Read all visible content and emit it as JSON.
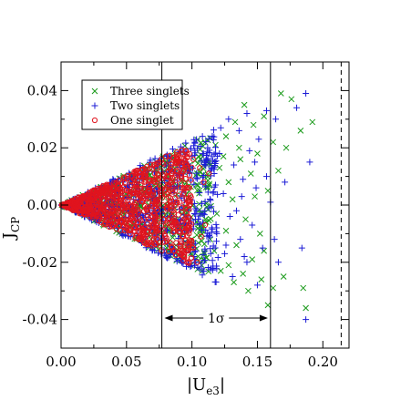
{
  "chart_data": {
    "type": "scatter",
    "xlabel": {
      "main": "|U",
      "sub": "e3",
      "tail": "|"
    },
    "ylabel": {
      "main": "J",
      "sub": "CP"
    },
    "xlim": [
      0.0,
      0.22
    ],
    "ylim": [
      -0.05,
      0.05
    ],
    "x_ticks": [
      {
        "value": 0.0,
        "label": "0.00"
      },
      {
        "value": 0.05,
        "label": "0.05"
      },
      {
        "value": 0.1,
        "label": "0.10"
      },
      {
        "value": 0.15,
        "label": "0.15"
      },
      {
        "value": 0.2,
        "label": "0.20"
      }
    ],
    "y_ticks": [
      {
        "value": -0.04,
        "label": "-0.04"
      },
      {
        "value": -0.02,
        "label": "-0.02"
      },
      {
        "value": 0.0,
        "label": "0.00"
      },
      {
        "value": 0.02,
        "label": "0.02"
      },
      {
        "value": 0.04,
        "label": "0.04"
      }
    ],
    "grid": false,
    "legend_position": "top-left",
    "vertical_lines": [
      {
        "x": 0.077,
        "style": "solid"
      },
      {
        "x": 0.16,
        "style": "solid"
      },
      {
        "x": 0.214,
        "style": "dashed"
      }
    ],
    "annotation": {
      "text": "1σ",
      "arrow_from": 0.079,
      "arrow_to": 0.158,
      "y": -0.0395
    },
    "series": [
      {
        "name": "Three singlets",
        "marker": "x",
        "color": "#1a9a1a",
        "envelope": {
          "x_max": 0.115,
          "slope": 0.22
        },
        "points": [
          [
            0.168,
            0.039
          ],
          [
            0.176,
            0.037
          ],
          [
            0.192,
            0.029
          ],
          [
            0.183,
            0.026
          ],
          [
            0.172,
            0.02
          ],
          [
            0.155,
            0.031
          ],
          [
            0.14,
            0.035
          ],
          [
            0.147,
            0.028
          ],
          [
            0.162,
            0.022
          ],
          [
            0.15,
            0.018
          ],
          [
            0.133,
            0.029
          ],
          [
            0.126,
            0.024
          ],
          [
            0.118,
            0.021
          ],
          [
            0.137,
            0.016
          ],
          [
            0.121,
            0.013
          ],
          [
            0.145,
            0.011
          ],
          [
            0.128,
            0.008
          ],
          [
            0.112,
            0.006
          ],
          [
            0.158,
            0.005
          ],
          [
            0.131,
            0.002
          ],
          [
            0.119,
            -0.003
          ],
          [
            0.141,
            -0.005
          ],
          [
            0.126,
            -0.009
          ],
          [
            0.152,
            -0.01
          ],
          [
            0.134,
            -0.014
          ],
          [
            0.117,
            -0.016
          ],
          [
            0.146,
            -0.019
          ],
          [
            0.128,
            -0.021
          ],
          [
            0.139,
            -0.024
          ],
          [
            0.153,
            -0.026
          ],
          [
            0.162,
            -0.029
          ],
          [
            0.158,
            -0.035
          ],
          [
            0.187,
            -0.036
          ],
          [
            0.185,
            -0.029
          ],
          [
            0.143,
            -0.03
          ],
          [
            0.132,
            -0.027
          ],
          [
            0.17,
            -0.025
          ],
          [
            0.122,
            -0.023
          ],
          [
            0.109,
            -0.019
          ],
          [
            0.105,
            0.017
          ],
          [
            0.11,
            0.022
          ],
          [
            0.114,
            -0.012
          ],
          [
            0.098,
            0.012
          ],
          [
            0.101,
            -0.015
          ],
          [
            0.136,
            0.02
          ],
          [
            0.148,
            0.003
          ],
          [
            0.124,
            0.017
          ],
          [
            0.155,
            -0.016
          ],
          [
            0.166,
            0.012
          ],
          [
            0.107,
            -0.008
          ]
        ]
      },
      {
        "name": "Two singlets",
        "marker": "plus",
        "color": "#1c1cd6",
        "envelope": {
          "x_max": 0.12,
          "slope": 0.23
        },
        "points": [
          [
            0.187,
            0.039
          ],
          [
            0.18,
            0.034
          ],
          [
            0.19,
            0.015
          ],
          [
            0.164,
            0.03
          ],
          [
            0.157,
            0.033
          ],
          [
            0.142,
            0.032
          ],
          [
            0.151,
            0.023
          ],
          [
            0.136,
            0.026
          ],
          [
            0.128,
            0.03
          ],
          [
            0.144,
            0.019
          ],
          [
            0.132,
            0.014
          ],
          [
            0.121,
            0.018
          ],
          [
            0.139,
            0.009
          ],
          [
            0.117,
            0.011
          ],
          [
            0.149,
            0.006
          ],
          [
            0.124,
            0.004
          ],
          [
            0.16,
            0.001
          ],
          [
            0.113,
            -0.001
          ],
          [
            0.129,
            -0.004
          ],
          [
            0.146,
            -0.007
          ],
          [
            0.119,
            -0.01
          ],
          [
            0.137,
            -0.012
          ],
          [
            0.154,
            -0.015
          ],
          [
            0.125,
            -0.017
          ],
          [
            0.142,
            -0.02
          ],
          [
            0.116,
            -0.022
          ],
          [
            0.131,
            -0.025
          ],
          [
            0.163,
            -0.012
          ],
          [
            0.166,
            -0.02
          ],
          [
            0.184,
            -0.015
          ],
          [
            0.187,
            -0.04
          ],
          [
            0.15,
            -0.028
          ],
          [
            0.138,
            0.003
          ],
          [
            0.108,
            0.024
          ],
          [
            0.112,
            0.02
          ],
          [
            0.103,
            -0.02
          ],
          [
            0.11,
            -0.016
          ],
          [
            0.122,
            0.027
          ],
          [
            0.157,
            0.01
          ],
          [
            0.134,
            -0.002
          ],
          [
            0.148,
            0.015
          ],
          [
            0.126,
            -0.014
          ],
          [
            0.171,
            0.008
          ],
          [
            0.118,
            0.007
          ],
          [
            0.14,
            -0.018
          ]
        ]
      },
      {
        "name": "One singlet",
        "marker": "circle",
        "color": "#e0141e",
        "envelope": {
          "x_max": 0.1,
          "slope": 0.21
        },
        "points": [
          [
            0.063,
            0.011
          ],
          [
            0.071,
            0.014
          ],
          [
            0.08,
            0.017
          ],
          [
            0.088,
            0.015
          ],
          [
            0.095,
            0.019
          ],
          [
            0.101,
            0.016
          ],
          [
            0.106,
            0.013
          ],
          [
            0.092,
            0.01
          ],
          [
            0.084,
            0.008
          ],
          [
            0.076,
            0.005
          ],
          [
            0.098,
            0.006
          ],
          [
            0.109,
            0.008
          ],
          [
            0.069,
            -0.009
          ],
          [
            0.078,
            -0.013
          ],
          [
            0.086,
            -0.016
          ],
          [
            0.094,
            -0.018
          ],
          [
            0.101,
            -0.015
          ],
          [
            0.107,
            -0.011
          ],
          [
            0.09,
            -0.008
          ],
          [
            0.082,
            -0.005
          ],
          [
            0.097,
            -0.004
          ],
          [
            0.11,
            -0.007
          ],
          [
            0.074,
            0.002
          ],
          [
            0.104,
            -0.02
          ],
          [
            0.113,
            0.011
          ]
        ]
      }
    ]
  }
}
